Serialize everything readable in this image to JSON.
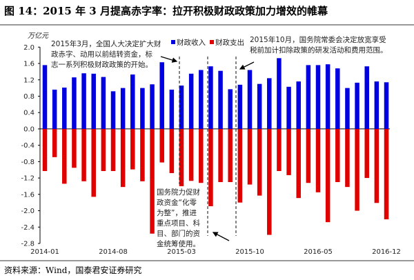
{
  "title": "图 14：2015 年 3 月提高赤字率：拉开积极财政政策加力增效的帷幕",
  "source": "资料来源：Wind，国泰君安证券研究",
  "chart_data": {
    "type": "bar",
    "unit_label": "万亿元",
    "ylim": [
      -2.8,
      2.0
    ],
    "yticks": [
      "2.0",
      "1.6",
      "1.2",
      "0.8",
      "0.4",
      "0.0",
      "-0.4",
      "-0.8",
      "-1.2",
      "-1.6",
      "-2.0",
      "-2.4",
      "-2.8"
    ],
    "xtick_labels": [
      "2014-01",
      "2014-08",
      "2015-03",
      "2015-10",
      "2016-05",
      "2016-12"
    ],
    "categories": [
      "2014-01",
      "2014-02",
      "2014-03",
      "2014-04",
      "2014-05",
      "2014-06",
      "2014-07",
      "2014-08",
      "2014-09",
      "2014-10",
      "2014-11",
      "2014-12",
      "2015-01",
      "2015-02",
      "2015-03",
      "2015-04",
      "2015-05",
      "2015-06",
      "2015-07",
      "2015-08",
      "2015-09",
      "2015-10",
      "2015-11",
      "2015-12",
      "2016-01",
      "2016-02",
      "2016-03",
      "2016-04",
      "2016-05",
      "2016-06",
      "2016-07",
      "2016-08",
      "2016-09",
      "2016-10",
      "2016-11",
      "2016-12"
    ],
    "series": [
      {
        "name": "财政收入",
        "color": "#0000e0",
        "values": [
          1.56,
          0.96,
          1.01,
          1.26,
          1.36,
          1.35,
          1.27,
          0.92,
          1.0,
          1.33,
          1.0,
          1.09,
          1.63,
          0.96,
          1.06,
          1.35,
          1.44,
          1.53,
          1.42,
          0.97,
          1.08,
          1.44,
          1.1,
          1.24,
          1.73,
          1.03,
          1.16,
          1.56,
          1.56,
          1.58,
          1.48,
          1.0,
          1.13,
          1.53,
          1.16,
          1.14
        ]
      },
      {
        "name": "财政支出",
        "color": "#e00000",
        "values": [
          -1.03,
          -0.69,
          -1.34,
          -0.95,
          -1.28,
          -1.66,
          -1.03,
          -1.03,
          -1.42,
          -0.99,
          -1.28,
          -2.56,
          -0.82,
          -1.08,
          -1.4,
          -1.27,
          -1.32,
          -1.89,
          -1.3,
          -1.3,
          -1.8,
          -1.36,
          -1.63,
          -2.59,
          -1.03,
          -1.13,
          -1.69,
          -1.32,
          -1.55,
          -2.28,
          -1.3,
          -1.42,
          -2.0,
          -1.2,
          -1.81,
          -2.21
        ]
      }
    ],
    "grid": false,
    "legend": "top-center",
    "annotations": [
      {
        "lines": [
          "2015年3月，全国人大决定扩大财",
          "政赤字、动用以前结转资金，标",
          "志一系列积极财政政策的开始。"
        ]
      },
      {
        "lines": [
          "2015年10月，国务院常委会决定放宽享受",
          "税前加计扣除政策的研发活动和费用范围。"
        ]
      },
      {
        "lines": [
          "国务院力促财",
          "政资金“化零",
          "为整”，推进",
          "重点项目、科",
          "目、部门的资",
          "金统筹使用。"
        ]
      }
    ]
  }
}
